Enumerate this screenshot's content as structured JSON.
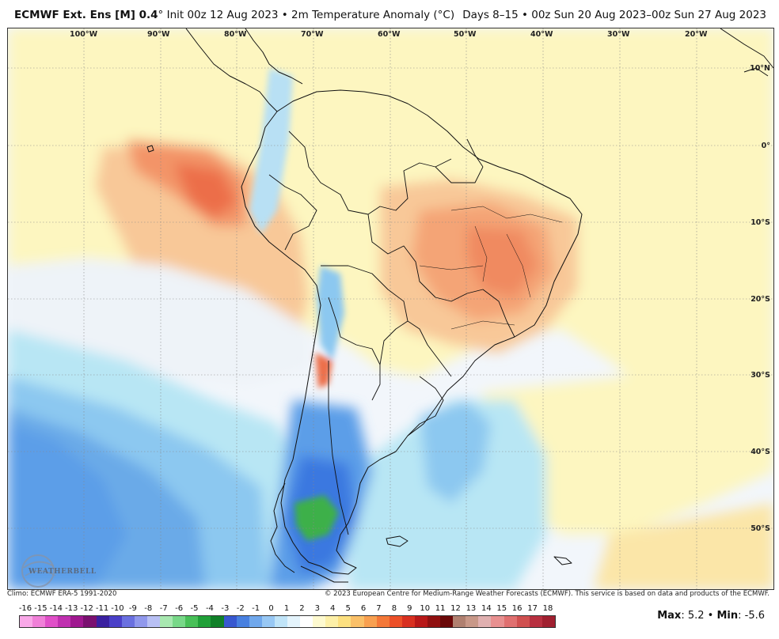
{
  "header": {
    "model": "ECMWF Ext.  Ens [M] 0.4",
    "init_info": "° Init 00z 12 Aug 2023 • 2m Temperature Anomaly (°C)",
    "valid_info": "Days 8–15 • 00z Sun 20 Aug 2023–00z Sun 27 Aug 2023"
  },
  "map": {
    "lon_labels": [
      "100°W",
      "90°W",
      "80°W",
      "70°W",
      "60°W",
      "50°W",
      "40°W",
      "30°W",
      "20°W"
    ],
    "lat_labels": [
      "10°N",
      "0°",
      "10°S",
      "20°S",
      "30°S",
      "40°S",
      "50°S"
    ],
    "colors": {
      "ocean_neutral": "#f2f6fb",
      "warm_1": "#fdf6c0",
      "warm_2": "#fbe0a0",
      "warm_3": "#f8b888",
      "warm_4": "#f39468",
      "warm_5": "#ec6e48",
      "cool_1": "#def2f8",
      "cool_2": "#b8e6f4",
      "cool_3": "#8cc8f0",
      "cool_4": "#5c9ee8",
      "cool_5": "#3a78e0",
      "green": "#3cb04a",
      "border": "#111111"
    }
  },
  "logo": {
    "text": "WEATHERBELL",
    "icon": "globe-swirl-icon"
  },
  "footer": {
    "climo": "Climo: ECMWF ERA-5 1991-2020",
    "copyright": "© 2023 European Centre for Medium-Range Weather Forecasts (ECMWF). This service is based on data and products of the ECMWF."
  },
  "colorbar": {
    "labels": [
      "-16",
      "-15",
      "-14",
      "-13",
      "-12",
      "-11",
      "-10",
      "-9",
      "-8",
      "-7",
      "-6",
      "-5",
      "-4",
      "-3",
      "-2",
      "-1",
      "0",
      "1",
      "2",
      "3",
      "4",
      "5",
      "6",
      "7",
      "8",
      "9",
      "10",
      "11",
      "12",
      "13",
      "14",
      "15",
      "16",
      "17",
      "18"
    ],
    "colors": [
      "#f9a8e8",
      "#f080d8",
      "#e050c8",
      "#c030b0",
      "#a01890",
      "#7a1070",
      "#3a20a0",
      "#4a40c8",
      "#6a70e0",
      "#9098ec",
      "#b8c0f4",
      "#a8e8b0",
      "#78d888",
      "#48c058",
      "#20a038",
      "#108028",
      "#3858d0",
      "#4880e0",
      "#70a8ec",
      "#98c8f4",
      "#c0e4f8",
      "#e4f4fc",
      "#ffffff",
      "#fefad0",
      "#fdf0a8",
      "#fce080",
      "#fac068",
      "#f8a050",
      "#f47838",
      "#ec5028",
      "#d83020",
      "#b81818",
      "#901010",
      "#6a0808",
      "#b08070",
      "#c89888",
      "#e0b0b0",
      "#e89090",
      "#e07070",
      "#d05050",
      "#b83040",
      "#a02030"
    ]
  },
  "stats": {
    "max_label": "Max",
    "max_value": ": 5.2",
    "sep": " • ",
    "min_label": "Min",
    "min_value": ": -5.6"
  }
}
